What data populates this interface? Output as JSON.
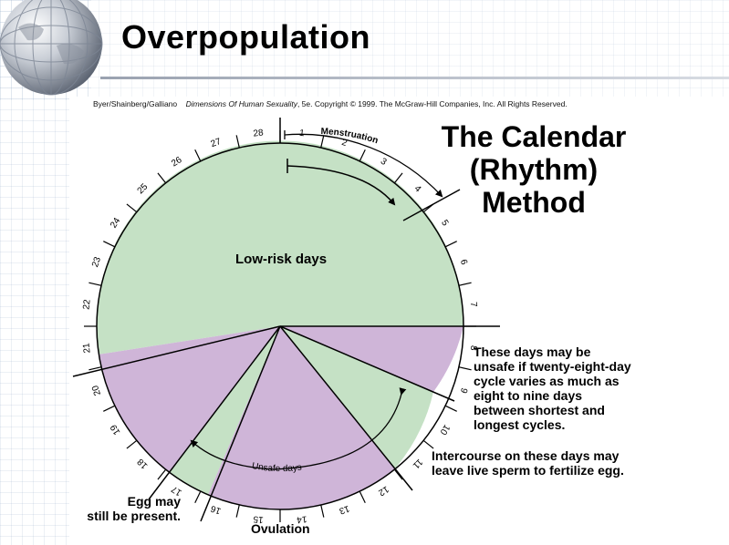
{
  "slide": {
    "title": "Overpopulation",
    "copyright": {
      "authors": "Byer/Shainberg/Galliano",
      "book": "Dimensions Of Human Sexuality",
      "rest": ", 5e. Copyright © 1999. The McGraw-Hill Companies, Inc. All Rights Reserved."
    }
  },
  "diagram": {
    "title_lines": [
      "The Calendar",
      "(Rhythm)",
      "Method"
    ],
    "day_labels": [
      "1",
      "2",
      "3",
      "4",
      "5",
      "6",
      "7",
      "8",
      "9",
      "10",
      "11",
      "12",
      "13",
      "14",
      "15",
      "16",
      "17",
      "18",
      "19",
      "20",
      "21",
      "22",
      "23",
      "24",
      "25",
      "26",
      "27",
      "28"
    ],
    "region_labels": {
      "low_risk": "Low-risk days",
      "menstruation": "Menstruation",
      "unsafe": "Unsafe days"
    },
    "notes": {
      "variable_cycle": [
        "These days may be",
        "unsafe if twenty-eight-day",
        "cycle varies as much as",
        "eight to nine days",
        "between shortest and",
        "longest cycles."
      ],
      "sperm": [
        "Intercourse on these days may",
        "leave live sperm to fertilize egg."
      ],
      "egg": [
        "Egg may",
        "still be present."
      ],
      "ovulation": "Ovulation"
    },
    "colors": {
      "low_risk_green": "#c5e1c5",
      "unsafe_purple": "#cfb5d8",
      "outline": "#000000"
    }
  }
}
